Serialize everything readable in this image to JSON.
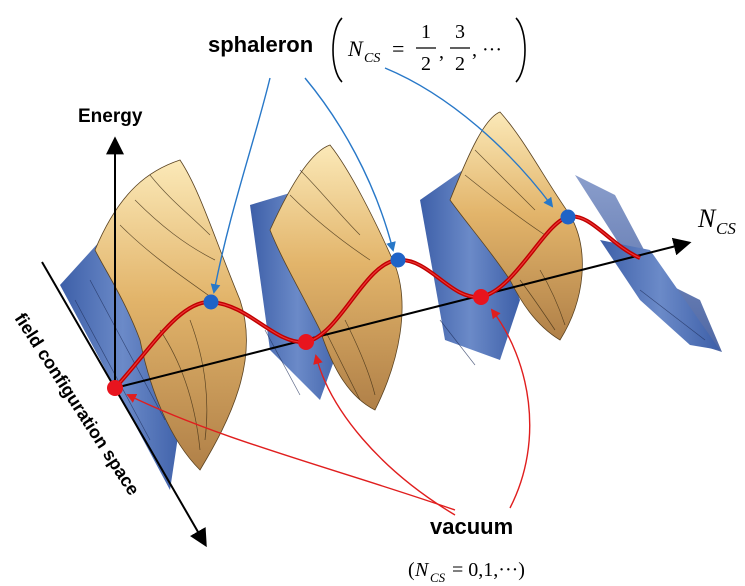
{
  "labels": {
    "sphaleron": "sphaleron",
    "sphaleron_symbol": "N",
    "sphaleron_sub": "CS",
    "sphaleron_eq": "=",
    "half_num": "1",
    "half_den": "2",
    "three_num": "3",
    "three_den": "2",
    "dots": ", ···",
    "energy": "Energy",
    "ncs_axis": "N",
    "ncs_axis_sub": "CS",
    "field_axis": "field configuration space",
    "vacuum": "vacuum",
    "vacuum_formula_open": "(",
    "vacuum_formula_symbol": "N",
    "vacuum_formula_sub": "CS",
    "vacuum_formula_values": " = 0,1,···)"
  },
  "colors": {
    "surface_peak": "#f6dca0",
    "surface_mid": "#d9a857",
    "surface_valley": "#4f70b5",
    "path": "#c00000",
    "vacuum_point": "#e8141e",
    "sphaleron_point": "#1f63c7",
    "sphaleron_arrow": "#2878c8",
    "vacuum_arrow": "#e01e1e",
    "axis": "#000000"
  },
  "icons": {
    "vacuum_marker": "red-dot",
    "sphaleron_marker": "blue-dot"
  }
}
